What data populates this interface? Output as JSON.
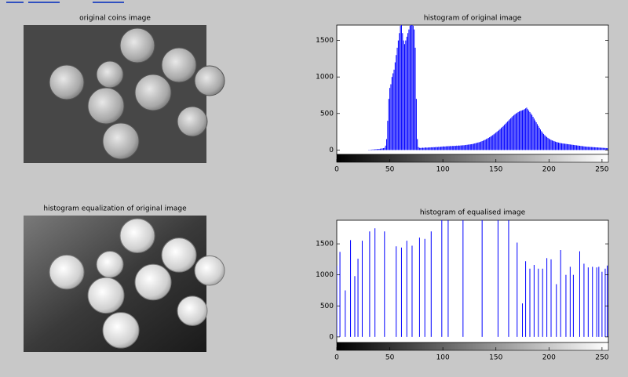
{
  "chart_data": [
    {
      "type": "image",
      "title": "original coins image"
    },
    {
      "type": "stem",
      "title": "histogram of original image",
      "color": "#0000ff",
      "x": [
        0,
        1,
        2,
        3,
        4,
        5,
        6,
        7,
        8,
        9,
        10,
        11,
        12,
        13,
        14,
        15,
        16,
        17,
        18,
        19,
        20,
        21,
        22,
        23,
        24,
        25,
        26,
        27,
        28,
        29,
        30,
        31,
        32,
        33,
        34,
        35,
        36,
        37,
        38,
        39,
        40,
        41,
        42,
        43,
        44,
        45,
        46,
        47,
        48,
        49,
        50,
        51,
        52,
        53,
        54,
        55,
        56,
        57,
        58,
        59,
        60,
        61,
        62,
        63,
        64,
        65,
        66,
        67,
        68,
        69,
        70,
        71,
        72,
        73,
        74,
        75,
        76,
        77,
        78,
        79,
        80,
        81,
        82,
        83,
        84,
        85,
        86,
        87,
        88,
        89,
        90,
        91,
        92,
        93,
        94,
        95,
        96,
        97,
        98,
        99,
        100,
        101,
        102,
        103,
        104,
        105,
        106,
        107,
        108,
        109,
        110,
        111,
        112,
        113,
        114,
        115,
        116,
        117,
        118,
        119,
        120,
        121,
        122,
        123,
        124,
        125,
        126,
        127,
        128,
        129,
        130,
        131,
        132,
        133,
        134,
        135,
        136,
        137,
        138,
        139,
        140,
        141,
        142,
        143,
        144,
        145,
        146,
        147,
        148,
        149,
        150,
        151,
        152,
        153,
        154,
        155,
        156,
        157,
        158,
        159,
        160,
        161,
        162,
        163,
        164,
        165,
        166,
        167,
        168,
        169,
        170,
        171,
        172,
        173,
        174,
        175,
        176,
        177,
        178,
        179,
        180,
        181,
        182,
        183,
        184,
        185,
        186,
        187,
        188,
        189,
        190,
        191,
        192,
        193,
        194,
        195,
        196,
        197,
        198,
        199,
        200,
        201,
        202,
        203,
        204,
        205,
        206,
        207,
        208,
        209,
        210,
        211,
        212,
        213,
        214,
        215,
        216,
        217,
        218,
        219,
        220,
        221,
        222,
        223,
        224,
        225,
        226,
        227,
        228,
        229,
        230,
        231,
        232,
        233,
        234,
        235,
        236,
        237,
        238,
        239,
        240,
        241,
        242,
        243,
        244,
        245,
        246,
        247,
        248,
        249,
        250,
        251,
        252,
        253,
        254,
        255
      ],
      "values": [
        0,
        0,
        0,
        0,
        0,
        0,
        0,
        0,
        0,
        0,
        0,
        0,
        0,
        0,
        0,
        0,
        0,
        0,
        0,
        0,
        0,
        0,
        0,
        0,
        0,
        0,
        0,
        0,
        0,
        0,
        3,
        4,
        5,
        6,
        8,
        8,
        10,
        12,
        12,
        14,
        15,
        18,
        20,
        22,
        25,
        30,
        60,
        150,
        400,
        700,
        850,
        900,
        1000,
        1050,
        1100,
        1200,
        1300,
        1400,
        1500,
        1600,
        1700,
        1710,
        1600,
        1500,
        1450,
        1500,
        1550,
        1600,
        1650,
        1700,
        1710,
        1710,
        1700,
        1650,
        1400,
        700,
        150,
        40,
        30,
        28,
        30,
        32,
        30,
        33,
        35,
        32,
        34,
        36,
        35,
        38,
        36,
        40,
        38,
        40,
        42,
        40,
        44,
        42,
        45,
        46,
        48,
        50,
        47,
        52,
        50,
        54,
        52,
        55,
        53,
        56,
        55,
        58,
        56,
        60,
        58,
        62,
        60,
        64,
        62,
        66,
        65,
        68,
        70,
        72,
        74,
        76,
        78,
        80,
        82,
        86,
        90,
        94,
        98,
        102,
        106,
        110,
        116,
        122,
        128,
        135,
        142,
        150,
        158,
        166,
        175,
        184,
        194,
        204,
        215,
        226,
        238,
        250,
        262,
        275,
        288,
        302,
        316,
        330,
        345,
        360,
        375,
        390,
        405,
        420,
        435,
        450,
        465,
        478,
        490,
        500,
        510,
        520,
        528,
        535,
        540,
        545,
        550,
        560,
        570,
        580,
        560,
        540,
        520,
        500,
        480,
        455,
        430,
        405,
        380,
        355,
        330,
        305,
        280,
        258,
        238,
        220,
        204,
        190,
        178,
        166,
        156,
        147,
        139,
        132,
        126,
        120,
        115,
        110,
        106,
        102,
        98,
        95,
        92,
        90,
        88,
        86,
        84,
        82,
        80,
        78,
        76,
        74,
        72,
        70,
        68,
        66,
        64,
        62,
        60,
        58,
        56,
        54,
        52,
        50,
        48,
        46,
        45,
        44,
        43,
        42,
        41,
        40,
        39,
        38,
        37,
        36,
        35,
        34,
        33,
        32,
        31,
        30,
        29,
        28,
        27,
        26
      ],
      "xlim": [
        0,
        256
      ],
      "ylim": [
        -60,
        1710
      ],
      "xticks": [
        0,
        50,
        100,
        150,
        200,
        250
      ],
      "yticks": [
        0,
        500,
        1000,
        1500
      ]
    },
    {
      "type": "image",
      "title": "histogram equalization of original image"
    },
    {
      "type": "stem",
      "title": "histogram of equalised image",
      "color": "#0000ff",
      "x": [
        0,
        3,
        8,
        13,
        17,
        20,
        24,
        31,
        36,
        45,
        56,
        61,
        66,
        71,
        78,
        83,
        89,
        99,
        105,
        119,
        137,
        152,
        162,
        170,
        175,
        178,
        182,
        186,
        190,
        194,
        198,
        202,
        207,
        211,
        216,
        220,
        223,
        229,
        233,
        237,
        241,
        245,
        247,
        250,
        253,
        255
      ],
      "values": [
        1150,
        1370,
        750,
        1560,
        980,
        1260,
        1550,
        1700,
        1750,
        1700,
        1460,
        1440,
        1550,
        1470,
        1600,
        1580,
        1700,
        1880,
        1880,
        1880,
        1880,
        1880,
        1880,
        1520,
        540,
        1220,
        1100,
        1160,
        1100,
        1100,
        1270,
        1250,
        850,
        1400,
        1000,
        1130,
        1000,
        1380,
        1180,
        1120,
        1130,
        1120,
        1130,
        1050,
        1100,
        1150
      ],
      "xlim": [
        0,
        256
      ],
      "ylim": [
        -90,
        1880
      ],
      "xticks": [
        0,
        50,
        100,
        150,
        200,
        250
      ],
      "yticks": [
        0,
        500,
        1000,
        1500
      ]
    }
  ]
}
